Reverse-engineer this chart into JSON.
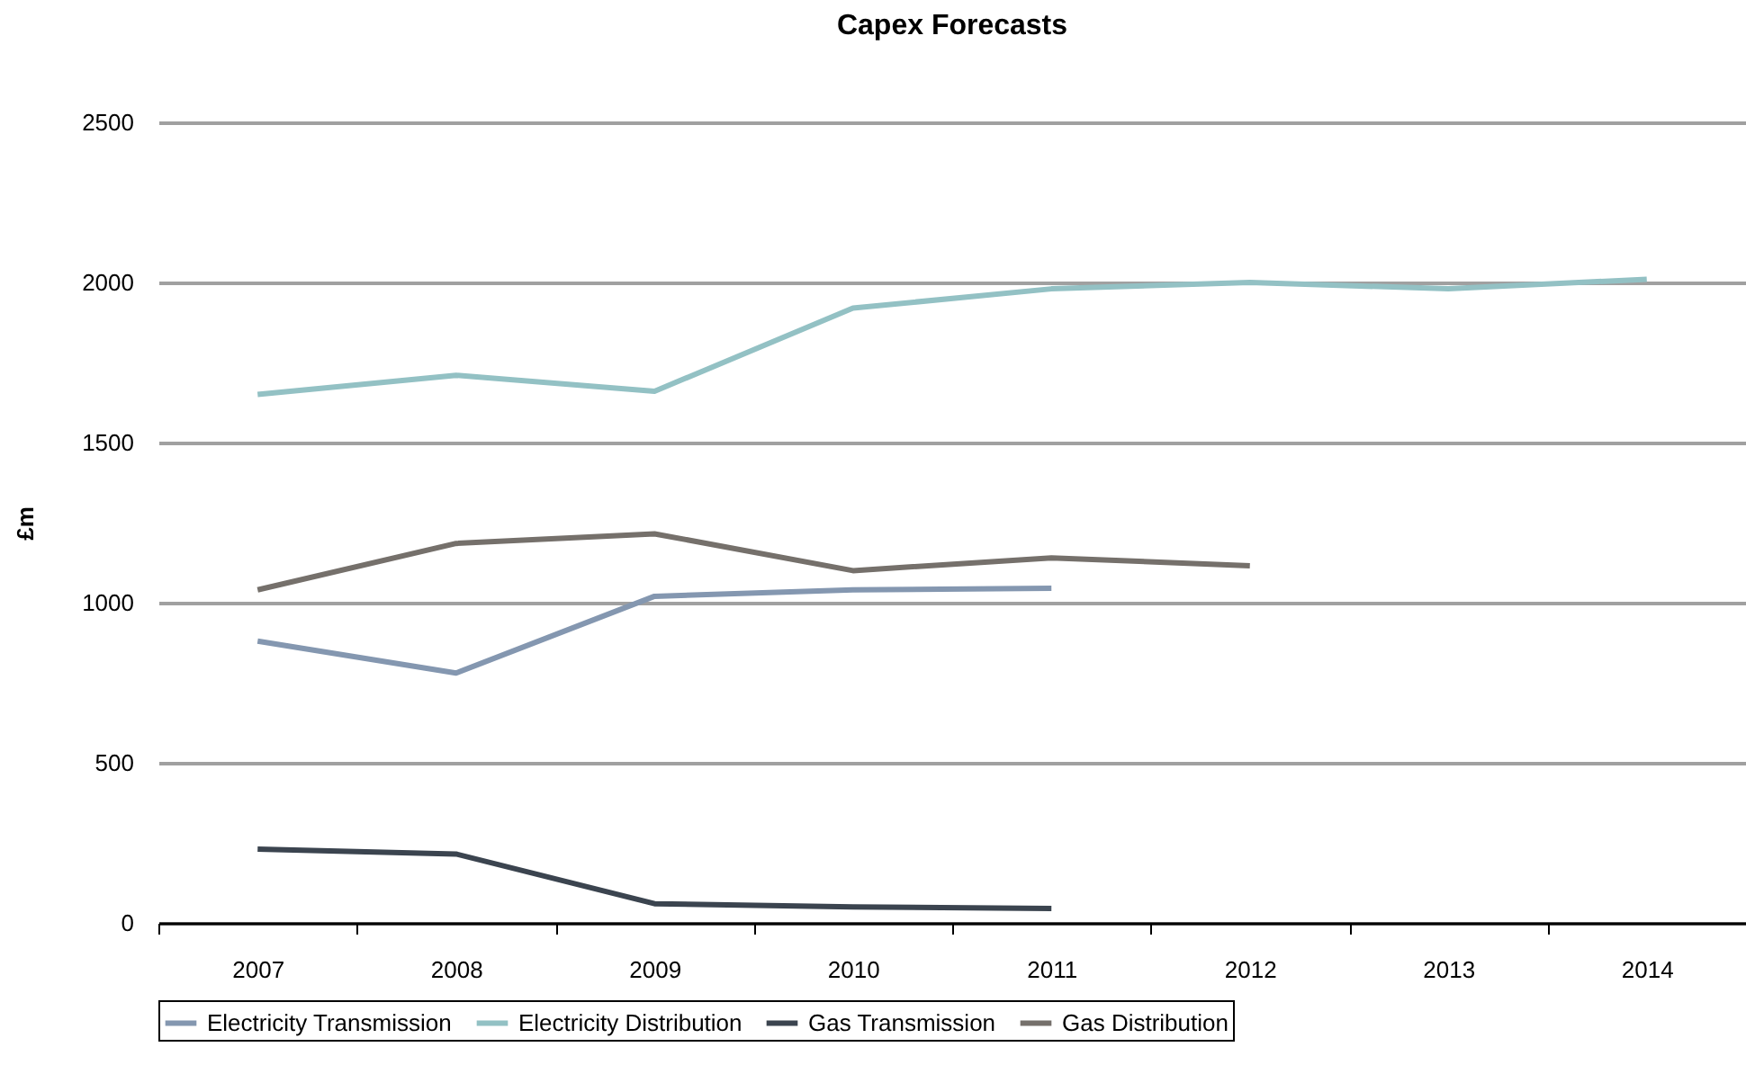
{
  "chart_data": {
    "type": "line",
    "title": "Capex Forecasts",
    "ylabel": "£m",
    "categories": [
      "2007",
      "2008",
      "2009",
      "2010",
      "2011",
      "2012",
      "2013",
      "2014"
    ],
    "ylim": [
      0,
      2500
    ],
    "yticks": [
      0,
      500,
      1000,
      1500,
      2000,
      2500
    ],
    "grid": "y",
    "legend": "bottom",
    "marker": "none",
    "line_style": "solid",
    "series": [
      {
        "name": "Electricity Transmission",
        "color": "#8497b0",
        "values": [
          880,
          780,
          1020,
          1040,
          1045,
          null,
          null,
          null
        ]
      },
      {
        "name": "Electricity Distribution",
        "color": "#93c1c4",
        "values": [
          1650,
          1710,
          1660,
          1920,
          1980,
          2000,
          1980,
          2010
        ]
      },
      {
        "name": "Gas Transmission",
        "color": "#3b444f",
        "values": [
          230,
          215,
          60,
          50,
          45,
          null,
          null,
          null
        ]
      },
      {
        "name": "Gas Distribution",
        "color": "#75706b",
        "values": [
          1040,
          1185,
          1215,
          1100,
          1140,
          1115,
          null,
          null
        ]
      }
    ]
  }
}
